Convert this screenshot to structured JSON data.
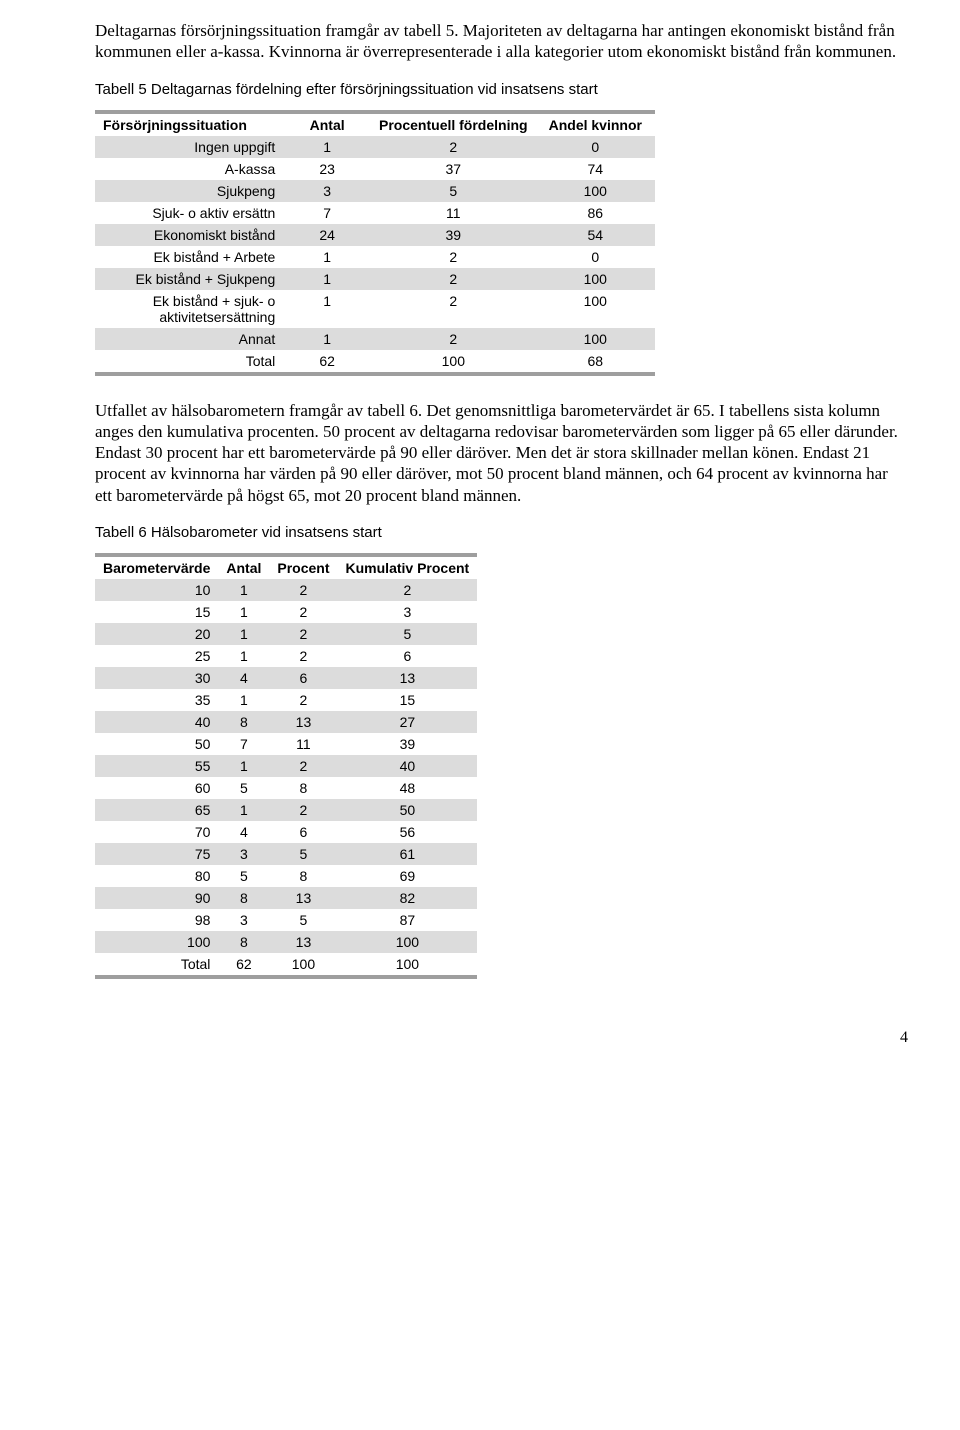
{
  "para1": "Deltagarnas försörjningssituation framgår av tabell 5. Majoriteten av deltagarna har antingen ekonomiskt bistånd från kommunen eller a-kassa. Kvinnorna är överrepresenterade i alla kategorier utom ekonomiskt bistånd från kommunen.",
  "table5": {
    "caption": "Tabell 5 Deltagarnas fördelning efter försörjningssituation vid insatsens start",
    "headers": {
      "c0": "Försörjningssituation",
      "c1": "Antal",
      "c2": "Procentuell fördelning",
      "c3": "Andel kvinnor"
    },
    "rows": [
      {
        "label": "Ingen uppgift",
        "antal": "1",
        "pct": "2",
        "kv": "0",
        "shade": true
      },
      {
        "label": "A-kassa",
        "antal": "23",
        "pct": "37",
        "kv": "74",
        "shade": false
      },
      {
        "label": "Sjukpeng",
        "antal": "3",
        "pct": "5",
        "kv": "100",
        "shade": true
      },
      {
        "label": "Sjuk- o aktiv ersättn",
        "antal": "7",
        "pct": "11",
        "kv": "86",
        "shade": false
      },
      {
        "label": "Ekonomiskt bistånd",
        "antal": "24",
        "pct": "39",
        "kv": "54",
        "shade": true
      },
      {
        "label": "Ek bistånd + Arbete",
        "antal": "1",
        "pct": "2",
        "kv": "0",
        "shade": false
      },
      {
        "label": "Ek bistånd + Sjukpeng",
        "antal": "1",
        "pct": "2",
        "kv": "100",
        "shade": true
      },
      {
        "label": "Ek bistånd + sjuk- o aktivitetsersättning",
        "antal": "1",
        "pct": "2",
        "kv": "100",
        "shade": false
      },
      {
        "label": "Annat",
        "antal": "1",
        "pct": "2",
        "kv": "100",
        "shade": true
      },
      {
        "label": "Total",
        "antal": "62",
        "pct": "100",
        "kv": "68",
        "shade": false
      }
    ]
  },
  "para2": "Utfallet av hälsobarometern framgår av tabell 6. Det genomsnittliga barometervärdet är 65. I tabellens sista kolumn anges den kumulativa procenten. 50 procent av deltagarna redovisar barometervärden som ligger på 65 eller därunder. Endast 30 procent har ett barometervärde på 90 eller däröver. Men det är stora skillnader mellan könen. Endast 21 procent av kvinnorna har värden på 90 eller däröver, mot 50 procent bland männen, och 64 procent av kvinnorna har ett barometervärde på högst 65, mot 20 procent bland männen.",
  "table6": {
    "caption": "Tabell 6 Hälsobarometer vid insatsens start",
    "headers": {
      "c0": "Barometervärde",
      "c1": "Antal",
      "c2": "Procent",
      "c3": "Kumulativ Procent"
    },
    "rows": [
      {
        "label": "10",
        "antal": "1",
        "pct": "2",
        "cum": "2",
        "shade": true
      },
      {
        "label": "15",
        "antal": "1",
        "pct": "2",
        "cum": "3",
        "shade": false
      },
      {
        "label": "20",
        "antal": "1",
        "pct": "2",
        "cum": "5",
        "shade": true
      },
      {
        "label": "25",
        "antal": "1",
        "pct": "2",
        "cum": "6",
        "shade": false
      },
      {
        "label": "30",
        "antal": "4",
        "pct": "6",
        "cum": "13",
        "shade": true
      },
      {
        "label": "35",
        "antal": "1",
        "pct": "2",
        "cum": "15",
        "shade": false
      },
      {
        "label": "40",
        "antal": "8",
        "pct": "13",
        "cum": "27",
        "shade": true
      },
      {
        "label": "50",
        "antal": "7",
        "pct": "11",
        "cum": "39",
        "shade": false
      },
      {
        "label": "55",
        "antal": "1",
        "pct": "2",
        "cum": "40",
        "shade": true
      },
      {
        "label": "60",
        "antal": "5",
        "pct": "8",
        "cum": "48",
        "shade": false
      },
      {
        "label": "65",
        "antal": "1",
        "pct": "2",
        "cum": "50",
        "shade": true
      },
      {
        "label": "70",
        "antal": "4",
        "pct": "6",
        "cum": "56",
        "shade": false
      },
      {
        "label": "75",
        "antal": "3",
        "pct": "5",
        "cum": "61",
        "shade": true
      },
      {
        "label": "80",
        "antal": "5",
        "pct": "8",
        "cum": "69",
        "shade": false
      },
      {
        "label": "90",
        "antal": "8",
        "pct": "13",
        "cum": "82",
        "shade": true
      },
      {
        "label": "98",
        "antal": "3",
        "pct": "5",
        "cum": "87",
        "shade": false
      },
      {
        "label": "100",
        "antal": "8",
        "pct": "13",
        "cum": "100",
        "shade": true
      },
      {
        "label": "Total",
        "antal": "62",
        "pct": "100",
        "cum": "100",
        "shade": false
      }
    ]
  },
  "page_number": "4"
}
